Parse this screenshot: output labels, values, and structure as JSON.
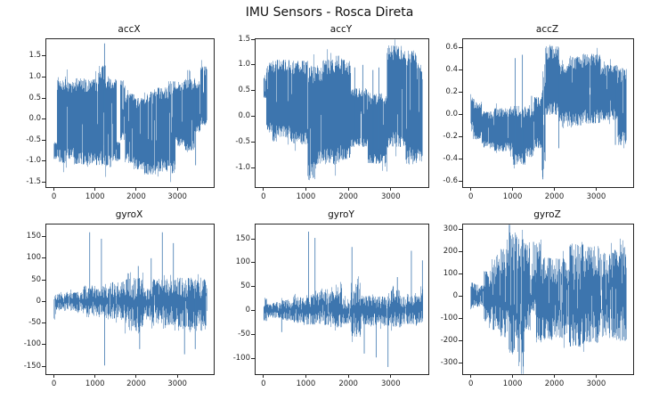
{
  "figure": {
    "title": "IMU Sensors - Rosca Direta",
    "line_color": "#3d76af",
    "background": "#ffffff",
    "text_color": "#262626"
  },
  "chart_data": [
    {
      "type": "line",
      "title": "accX",
      "xlabel": "",
      "ylabel": "",
      "grid": false,
      "legend": null,
      "xlim": [
        -185,
        3885
      ],
      "ylim": [
        -1.62,
        1.9
      ],
      "xticks": [
        0,
        1000,
        2000,
        3000
      ],
      "xtick_labels": [
        "0",
        "1000",
        "2000",
        "3000"
      ],
      "yticks": [
        -1.5,
        -1.0,
        -0.5,
        0.0,
        0.5,
        1.0,
        1.5
      ],
      "ytick_labels": [
        "-1.5",
        "-1.0",
        "-0.5",
        "0.0",
        "0.5",
        "1.0",
        "1.5"
      ],
      "texture": {
        "inward": 0.15,
        "outward": 0.06,
        "streak": 0.05
      },
      "envelope_segments": [
        [
          0,
          80,
          -0.95,
          -0.55
        ],
        [
          80,
          210,
          -1.02,
          0.95
        ],
        [
          210,
          330,
          -1.05,
          0.96
        ],
        [
          330,
          500,
          -0.95,
          0.9
        ],
        [
          500,
          760,
          -1.08,
          0.97
        ],
        [
          760,
          1080,
          -1.1,
          0.95
        ],
        [
          1080,
          1260,
          -1.1,
          1.28
        ],
        [
          1260,
          1430,
          -1.15,
          1.05
        ],
        [
          1430,
          1530,
          -1.02,
          0.95
        ],
        [
          1530,
          1610,
          -1.0,
          -0.55
        ],
        [
          1610,
          1730,
          -0.5,
          0.92
        ],
        [
          1730,
          1950,
          -1.05,
          0.6
        ],
        [
          1950,
          2200,
          -1.2,
          0.5
        ],
        [
          2200,
          2520,
          -1.32,
          0.65
        ],
        [
          2520,
          2780,
          -1.25,
          0.75
        ],
        [
          2780,
          2950,
          -1.3,
          0.9
        ],
        [
          2950,
          3160,
          -0.65,
          0.9
        ],
        [
          3160,
          3420,
          -0.75,
          0.95
        ],
        [
          3420,
          3560,
          -0.3,
          0.9
        ],
        [
          3560,
          3720,
          -0.15,
          1.25
        ]
      ],
      "spikes": [
        [
          1230,
          1.8
        ],
        [
          3445,
          -1.1
        ]
      ]
    },
    {
      "type": "line",
      "title": "accY",
      "xlabel": "",
      "ylabel": "",
      "grid": false,
      "legend": null,
      "xlim": [
        -185,
        3885
      ],
      "ylim": [
        -1.38,
        1.5
      ],
      "xticks": [
        0,
        1000,
        2000,
        3000
      ],
      "xtick_labels": [
        "0",
        "1000",
        "2000",
        "3000"
      ],
      "yticks": [
        -1.0,
        -0.5,
        0.0,
        0.5,
        1.0,
        1.5
      ],
      "ytick_labels": [
        "-1.0",
        "-0.5",
        "0.0",
        "0.5",
        "1.0",
        "1.5"
      ],
      "texture": {
        "inward": 0.16,
        "outward": 0.06,
        "streak": 0.05
      },
      "envelope_segments": [
        [
          0,
          70,
          0.35,
          0.75
        ],
        [
          70,
          210,
          -0.35,
          1.06
        ],
        [
          210,
          310,
          -0.55,
          1.08
        ],
        [
          310,
          620,
          -0.42,
          1.1
        ],
        [
          620,
          1040,
          -0.55,
          1.08
        ],
        [
          1040,
          1230,
          -1.25,
          1.0
        ],
        [
          1230,
          1400,
          -0.95,
          0.95
        ],
        [
          1400,
          1690,
          -0.95,
          1.12
        ],
        [
          1690,
          1810,
          -0.9,
          1.18
        ],
        [
          1810,
          2060,
          -0.85,
          1.1
        ],
        [
          2060,
          2460,
          -0.6,
          0.55
        ],
        [
          2460,
          2910,
          -0.92,
          0.45
        ],
        [
          2910,
          3360,
          -0.6,
          1.38
        ],
        [
          3360,
          3610,
          -0.95,
          1.3
        ],
        [
          3610,
          3750,
          -0.9,
          1.0
        ]
      ],
      "spikes": [
        [
          2150,
          0.95
        ],
        [
          2340,
          1.0
        ],
        [
          2580,
          0.9
        ],
        [
          2720,
          0.95
        ]
      ]
    },
    {
      "type": "line",
      "title": "accZ",
      "xlabel": "",
      "ylabel": "",
      "grid": false,
      "legend": null,
      "xlim": [
        -185,
        3885
      ],
      "ylim": [
        -0.65,
        0.68
      ],
      "xticks": [
        0,
        1000,
        2000,
        3000
      ],
      "xtick_labels": [
        "0",
        "1000",
        "2000",
        "3000"
      ],
      "yticks": [
        -0.6,
        -0.4,
        -0.2,
        0.0,
        0.2,
        0.4,
        0.6
      ],
      "ytick_labels": [
        "-0.6",
        "-0.4",
        "-0.2",
        "0.0",
        "0.2",
        "0.4",
        "0.6"
      ],
      "texture": {
        "inward": 0.2,
        "outward": 0.08,
        "streak": 0.06
      },
      "envelope_segments": [
        [
          0,
          60,
          -0.12,
          0.17
        ],
        [
          60,
          260,
          -0.22,
          0.12
        ],
        [
          260,
          560,
          -0.3,
          0.03
        ],
        [
          560,
          1010,
          -0.33,
          0.06
        ],
        [
          1010,
          1310,
          -0.45,
          0.08
        ],
        [
          1310,
          1510,
          -0.38,
          0.06
        ],
        [
          1510,
          1700,
          -0.3,
          0.16
        ],
        [
          1700,
          1790,
          -0.5,
          0.35
        ],
        [
          1790,
          2110,
          0.0,
          0.62
        ],
        [
          2110,
          2360,
          -0.06,
          0.46
        ],
        [
          2360,
          2660,
          -0.1,
          0.52
        ],
        [
          2660,
          3110,
          -0.08,
          0.55
        ],
        [
          3110,
          3510,
          -0.05,
          0.45
        ],
        [
          3510,
          3720,
          -0.28,
          0.42
        ]
      ],
      "spikes": [
        [
          1060,
          0.51
        ],
        [
          1235,
          0.54
        ],
        [
          1455,
          0.17
        ],
        [
          1725,
          -0.58
        ],
        [
          2105,
          -0.3
        ],
        [
          3460,
          -0.27
        ]
      ]
    },
    {
      "type": "line",
      "title": "gyroX",
      "xlabel": "",
      "ylabel": "",
      "grid": false,
      "legend": null,
      "xlim": [
        -185,
        3885
      ],
      "ylim": [
        -168,
        178
      ],
      "xticks": [
        0,
        1000,
        2000,
        3000
      ],
      "xtick_labels": [
        "0",
        "1000",
        "2000",
        "3000"
      ],
      "yticks": [
        -150,
        -100,
        -50,
        0,
        50,
        100,
        150
      ],
      "ytick_labels": [
        "-150",
        "-100",
        "-50",
        "0",
        "50",
        "100",
        "150"
      ],
      "texture": {
        "inward": 0.42,
        "outward": 0.2,
        "streak": 0.04
      },
      "envelope_segments": [
        [
          0,
          45,
          -45,
          30
        ],
        [
          45,
          410,
          -18,
          18
        ],
        [
          410,
          710,
          -22,
          22
        ],
        [
          710,
          1110,
          -30,
          30
        ],
        [
          1110,
          1360,
          -35,
          35
        ],
        [
          1360,
          1710,
          -40,
          45
        ],
        [
          1710,
          2160,
          -60,
          55
        ],
        [
          2160,
          2360,
          -35,
          32
        ],
        [
          2360,
          2710,
          -50,
          50
        ],
        [
          2710,
          3010,
          -55,
          52
        ],
        [
          3010,
          3360,
          -60,
          55
        ],
        [
          3360,
          3720,
          -58,
          52
        ]
      ],
      "spikes": [
        [
          870,
          160
        ],
        [
          1155,
          145
        ],
        [
          1235,
          -148
        ],
        [
          2050,
          82
        ],
        [
          2085,
          -110
        ],
        [
          2365,
          100
        ],
        [
          2635,
          160
        ],
        [
          2905,
          135
        ],
        [
          3175,
          -122
        ],
        [
          3435,
          -110
        ]
      ]
    },
    {
      "type": "line",
      "title": "gyroY",
      "xlabel": "",
      "ylabel": "",
      "grid": false,
      "legend": null,
      "xlim": [
        -185,
        3885
      ],
      "ylim": [
        -133,
        180
      ],
      "xticks": [
        0,
        1000,
        2000,
        3000
      ],
      "xtick_labels": [
        "0",
        "1000",
        "2000",
        "3000"
      ],
      "yticks": [
        -100,
        -50,
        0,
        50,
        100,
        150
      ],
      "ytick_labels": [
        "-100",
        "-50",
        "0",
        "50",
        "100",
        "150"
      ],
      "texture": {
        "inward": 0.42,
        "outward": 0.2,
        "streak": 0.04
      },
      "envelope_segments": [
        [
          0,
          85,
          -22,
          27
        ],
        [
          85,
          425,
          -15,
          16
        ],
        [
          425,
          705,
          -20,
          22
        ],
        [
          705,
          1005,
          -25,
          28
        ],
        [
          1005,
          1305,
          -30,
          35
        ],
        [
          1305,
          1655,
          -30,
          40
        ],
        [
          1655,
          1855,
          -35,
          50
        ],
        [
          1855,
          2055,
          -28,
          25
        ],
        [
          2055,
          2305,
          -55,
          58
        ],
        [
          2305,
          2705,
          -30,
          30
        ],
        [
          2705,
          3005,
          -32,
          30
        ],
        [
          3005,
          3255,
          -35,
          42
        ],
        [
          3255,
          3705,
          -28,
          30
        ],
        [
          3705,
          3755,
          -25,
          45
        ]
      ],
      "spikes": [
        [
          430,
          -45
        ],
        [
          1065,
          165
        ],
        [
          1215,
          152
        ],
        [
          2085,
          133
        ],
        [
          2375,
          -90
        ],
        [
          2655,
          -98
        ],
        [
          2935,
          -118
        ],
        [
          3155,
          70
        ],
        [
          3485,
          125
        ],
        [
          3745,
          105
        ]
      ]
    },
    {
      "type": "line",
      "title": "gyroZ",
      "xlabel": "",
      "ylabel": "",
      "grid": false,
      "legend": null,
      "xlim": [
        -185,
        3885
      ],
      "ylim": [
        -350,
        320
      ],
      "xticks": [
        0,
        1000,
        2000,
        3000
      ],
      "xtick_labels": [
        "0",
        "1000",
        "2000",
        "3000"
      ],
      "yticks": [
        -300,
        -200,
        -100,
        0,
        100,
        200,
        300
      ],
      "ytick_labels": [
        "-300",
        "-200",
        "-100",
        "0",
        "100",
        "200",
        "300"
      ],
      "texture": {
        "inward": 0.32,
        "outward": 0.1,
        "streak": 0.11
      },
      "envelope_segments": [
        [
          0,
          105,
          -60,
          60
        ],
        [
          105,
          305,
          -48,
          52
        ],
        [
          305,
          505,
          -115,
          112
        ],
        [
          505,
          705,
          -152,
          185
        ],
        [
          705,
          905,
          -188,
          212
        ],
        [
          905,
          1105,
          -258,
          285
        ],
        [
          1105,
          1285,
          -325,
          255
        ],
        [
          1285,
          1425,
          -155,
          240
        ],
        [
          1425,
          1565,
          -75,
          125
        ],
        [
          1565,
          1705,
          -208,
          235
        ],
        [
          1705,
          2005,
          -198,
          175
        ],
        [
          2005,
          2355,
          -188,
          168
        ],
        [
          2355,
          2705,
          -228,
          235
        ],
        [
          2705,
          3105,
          -208,
          222
        ],
        [
          3105,
          3405,
          -188,
          205
        ],
        [
          3405,
          3720,
          -205,
          222
        ]
      ],
      "spikes": [
        [
          1500,
          242
        ],
        [
          1540,
          228
        ]
      ]
    }
  ]
}
